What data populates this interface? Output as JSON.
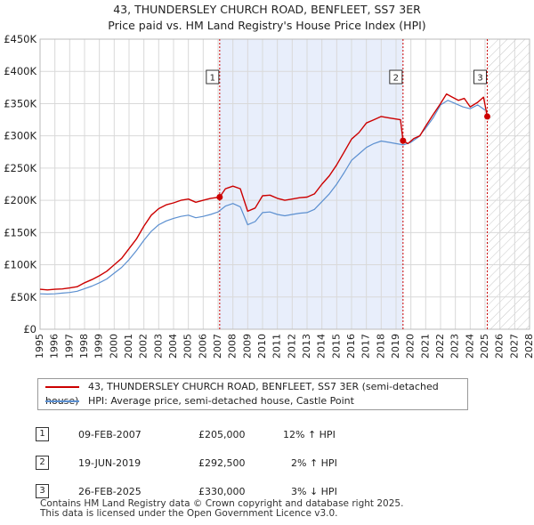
{
  "header": {
    "title": "43, THUNDERSLEY CHURCH ROAD, BENFLEET, SS7 3ER",
    "subtitle": "Price paid vs. HM Land Registry's House Price Index (HPI)"
  },
  "colors": {
    "property": "#cc0000",
    "hpi": "#5b8fd0",
    "shade": "#e8eefb",
    "grid": "#d9d9d9",
    "marker_line": "#cc0000"
  },
  "chart_data": {
    "type": "line",
    "title": "43, THUNDERSLEY CHURCH ROAD, BENFLEET, SS7 3ER",
    "subtitle": "Price paid vs. HM Land Registry's House Price Index (HPI)",
    "xlim": [
      1995,
      2028
    ],
    "ylim": [
      0,
      450000
    ],
    "x_ticks": [
      "1995",
      "1996",
      "1997",
      "1998",
      "1999",
      "2000",
      "2001",
      "2002",
      "2003",
      "2004",
      "2005",
      "2006",
      "2007",
      "2008",
      "2009",
      "2010",
      "2011",
      "2012",
      "2013",
      "2014",
      "2015",
      "2016",
      "2017",
      "2018",
      "2019",
      "2020",
      "2021",
      "2022",
      "2023",
      "2024",
      "2025",
      "2026",
      "2027",
      "2028"
    ],
    "y_ticks": [
      {
        "value": 0,
        "label": "£0"
      },
      {
        "value": 50000,
        "label": "£50K"
      },
      {
        "value": 100000,
        "label": "£100K"
      },
      {
        "value": 150000,
        "label": "£150K"
      },
      {
        "value": 200000,
        "label": "£200K"
      },
      {
        "value": 250000,
        "label": "£250K"
      },
      {
        "value": 300000,
        "label": "£300K"
      },
      {
        "value": 350000,
        "label": "£350K"
      },
      {
        "value": 400000,
        "label": "£400K"
      },
      {
        "value": 450000,
        "label": "£450K"
      }
    ],
    "shaded_range": [
      2007.11,
      2019.47
    ],
    "hatched_from": 2025.15,
    "series": [
      {
        "name": "43, THUNDERSLEY CHURCH ROAD, BENFLEET, SS7 3ER (semi-detached house)",
        "color_key": "property",
        "x": [
          1995,
          1995.5,
          1996,
          1996.5,
          1997,
          1997.5,
          1998,
          1998.5,
          1999,
          1999.5,
          2000,
          2000.5,
          2001,
          2001.5,
          2002,
          2002.5,
          2003,
          2003.5,
          2004,
          2004.5,
          2005,
          2005.5,
          2006,
          2006.5,
          2007.11,
          2007.5,
          2008,
          2008.5,
          2009,
          2009.5,
          2010,
          2010.5,
          2011,
          2011.5,
          2012,
          2012.5,
          2013,
          2013.5,
          2014,
          2014.5,
          2015,
          2015.5,
          2016,
          2016.5,
          2017,
          2017.5,
          2018,
          2018.5,
          2019.3,
          2019.47,
          2019.8,
          2020.2,
          2020.6,
          2021,
          2021.5,
          2022,
          2022.4,
          2022.8,
          2023.2,
          2023.6,
          2024,
          2024.5,
          2024.9,
          2025.15
        ],
        "y": [
          62000,
          61000,
          62000,
          62500,
          64000,
          66000,
          72000,
          77000,
          83000,
          90000,
          100000,
          110000,
          125000,
          140000,
          160000,
          177000,
          187000,
          193000,
          196000,
          200000,
          202000,
          197000,
          200000,
          203000,
          205000,
          218000,
          222000,
          218000,
          183000,
          188000,
          207000,
          208000,
          203000,
          200000,
          202000,
          204000,
          205000,
          210000,
          225000,
          238000,
          255000,
          275000,
          295000,
          305000,
          320000,
          325000,
          330000,
          328000,
          325000,
          292500,
          288000,
          296000,
          300000,
          315000,
          333000,
          350000,
          365000,
          360000,
          355000,
          358000,
          345000,
          352000,
          360000,
          330000
        ]
      },
      {
        "name": "HPI: Average price, semi-detached house, Castle Point",
        "color_key": "hpi",
        "x": [
          1995,
          1995.5,
          1996,
          1996.5,
          1997,
          1997.5,
          1998,
          1998.5,
          1999,
          1999.5,
          2000,
          2000.5,
          2001,
          2001.5,
          2002,
          2002.5,
          2003,
          2003.5,
          2004,
          2004.5,
          2005,
          2005.5,
          2006,
          2006.5,
          2007,
          2007.5,
          2008,
          2008.5,
          2009,
          2009.5,
          2010,
          2010.5,
          2011,
          2011.5,
          2012,
          2012.5,
          2013,
          2013.5,
          2014,
          2014.5,
          2015,
          2015.5,
          2016,
          2016.5,
          2017,
          2017.5,
          2018,
          2018.5,
          2019,
          2019.5,
          2020,
          2020.5,
          2021,
          2021.5,
          2022,
          2022.5,
          2023,
          2023.5,
          2024,
          2024.5,
          2025
        ],
        "y": [
          55000,
          54500,
          55000,
          56000,
          57000,
          59000,
          63000,
          67000,
          72000,
          78000,
          87000,
          96000,
          108000,
          122000,
          138000,
          152000,
          162000,
          168000,
          172000,
          175000,
          177000,
          173000,
          175000,
          178000,
          182000,
          191000,
          195000,
          190000,
          162000,
          167000,
          181000,
          182000,
          178000,
          176000,
          178000,
          180000,
          181000,
          186000,
          198000,
          210000,
          225000,
          243000,
          262000,
          272000,
          282000,
          288000,
          292000,
          290000,
          288000,
          286000,
          290000,
          298000,
          312000,
          328000,
          348000,
          355000,
          350000,
          345000,
          342000,
          348000,
          340000
        ]
      }
    ],
    "sales": [
      {
        "label": "1",
        "x": 2007.11,
        "price": 205000
      },
      {
        "label": "2",
        "x": 2019.47,
        "price": 292500
      },
      {
        "label": "3",
        "x": 2025.15,
        "price": 330000
      }
    ]
  },
  "legend": {
    "property_label": "43, THUNDERSLEY CHURCH ROAD, BENFLEET, SS7 3ER (semi-detached house)",
    "hpi_label": "HPI: Average price, semi-detached house, Castle Point"
  },
  "table": {
    "rows": [
      {
        "num": "1",
        "date": "09-FEB-2007",
        "price": "£205,000",
        "hpi": "12% ↑ HPI"
      },
      {
        "num": "2",
        "date": "19-JUN-2019",
        "price": "£292,500",
        "hpi": "2% ↑ HPI"
      },
      {
        "num": "3",
        "date": "26-FEB-2025",
        "price": "£330,000",
        "hpi": "3% ↓ HPI"
      }
    ]
  },
  "footer": {
    "line1": "Contains HM Land Registry data © Crown copyright and database right 2025.",
    "line2": "This data is licensed under the Open Government Licence v3.0."
  }
}
